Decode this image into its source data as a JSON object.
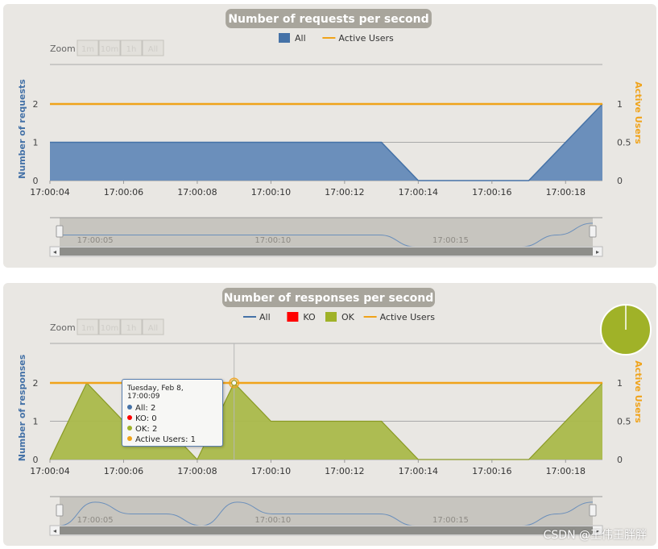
{
  "chart_data": [
    {
      "type": "area",
      "title": "Number of requests per second",
      "ylabel": "Number of requests",
      "y2label": "Active Users",
      "zoom_label": "Zoom",
      "zoom_buttons": [
        "1m",
        "10m",
        "1h",
        "All"
      ],
      "x_ticks": [
        "17:00:04",
        "17:00:06",
        "17:00:08",
        "17:00:10",
        "17:00:12",
        "17:00:14",
        "17:00:16",
        "17:00:18"
      ],
      "y_ticks": [
        "0",
        "1",
        "2"
      ],
      "y2_ticks": [
        "0",
        "0.5",
        "1"
      ],
      "navigator_ticks": [
        "17:00:05",
        "17:00:10",
        "17:00:15"
      ],
      "ylim": [
        0,
        3
      ],
      "y2lim": [
        0,
        1.5
      ],
      "x_seconds": [
        4,
        5,
        6,
        7,
        8,
        9,
        10,
        11,
        12,
        13,
        14,
        15,
        16,
        17,
        18,
        19
      ],
      "series": [
        {
          "name": "All",
          "axis": "left",
          "color": "#4572a7",
          "values": [
            1,
            1,
            1,
            1,
            1,
            1,
            1,
            1,
            1,
            1,
            0,
            0,
            0,
            0,
            1,
            2
          ]
        },
        {
          "name": "Active Users",
          "axis": "right",
          "color": "#f0a31a",
          "values": [
            1,
            1,
            1,
            1,
            1,
            1,
            1,
            1,
            1,
            1,
            1,
            1,
            1,
            1,
            1,
            1
          ]
        }
      ],
      "grid": true,
      "legend_position": "top"
    },
    {
      "type": "area",
      "title": "Number of responses per second",
      "ylabel": "Number of responses",
      "y2label": "Active Users",
      "zoom_label": "Zoom",
      "zoom_buttons": [
        "1m",
        "10m",
        "1h",
        "All"
      ],
      "x_ticks": [
        "17:00:04",
        "17:00:06",
        "17:00:08",
        "17:00:10",
        "17:00:12",
        "17:00:14",
        "17:00:16",
        "17:00:18"
      ],
      "y_ticks": [
        "0",
        "1",
        "2"
      ],
      "y2_ticks": [
        "0",
        "0.5",
        "1"
      ],
      "navigator_ticks": [
        "17:00:05",
        "17:00:10",
        "17:00:15"
      ],
      "ylim": [
        0,
        3
      ],
      "y2lim": [
        0,
        1.5
      ],
      "x_seconds": [
        4,
        5,
        6,
        7,
        8,
        9,
        10,
        11,
        12,
        13,
        14,
        15,
        16,
        17,
        18,
        19
      ],
      "series": [
        {
          "name": "All",
          "axis": "left",
          "color": "#4572a7",
          "values": [
            0,
            2,
            1,
            1,
            0,
            2,
            1,
            1,
            1,
            1,
            0,
            0,
            0,
            0,
            1,
            2
          ]
        },
        {
          "name": "KO",
          "axis": "left",
          "color": "#ff0000",
          "values": [
            0,
            0,
            0,
            0,
            0,
            0,
            0,
            0,
            0,
            0,
            0,
            0,
            0,
            0,
            0,
            0
          ]
        },
        {
          "name": "OK",
          "axis": "left",
          "color": "#a0b228",
          "values": [
            0,
            2,
            1,
            1,
            0,
            2,
            1,
            1,
            1,
            1,
            0,
            0,
            0,
            0,
            1,
            2
          ]
        },
        {
          "name": "Active Users",
          "axis": "right",
          "color": "#f0a31a",
          "values": [
            1,
            1,
            1,
            1,
            1,
            1,
            1,
            1,
            1,
            1,
            1,
            1,
            1,
            1,
            1,
            1
          ]
        }
      ],
      "pie": {
        "ok_fraction": 1.0,
        "color": "#a0b228"
      },
      "tooltip": {
        "title": "Tuesday, Feb 8, 17:00:09",
        "rows": [
          "All: 2",
          "KO: 0",
          "OK: 2",
          "Active Users: 1"
        ],
        "colors": [
          "#4572a7",
          "#ff0000",
          "#a0b228",
          "#f0a31a"
        ],
        "x_seconds": 9
      },
      "grid": true,
      "legend_position": "top"
    }
  ],
  "watermark": "CSDN @王伟王胖胖"
}
